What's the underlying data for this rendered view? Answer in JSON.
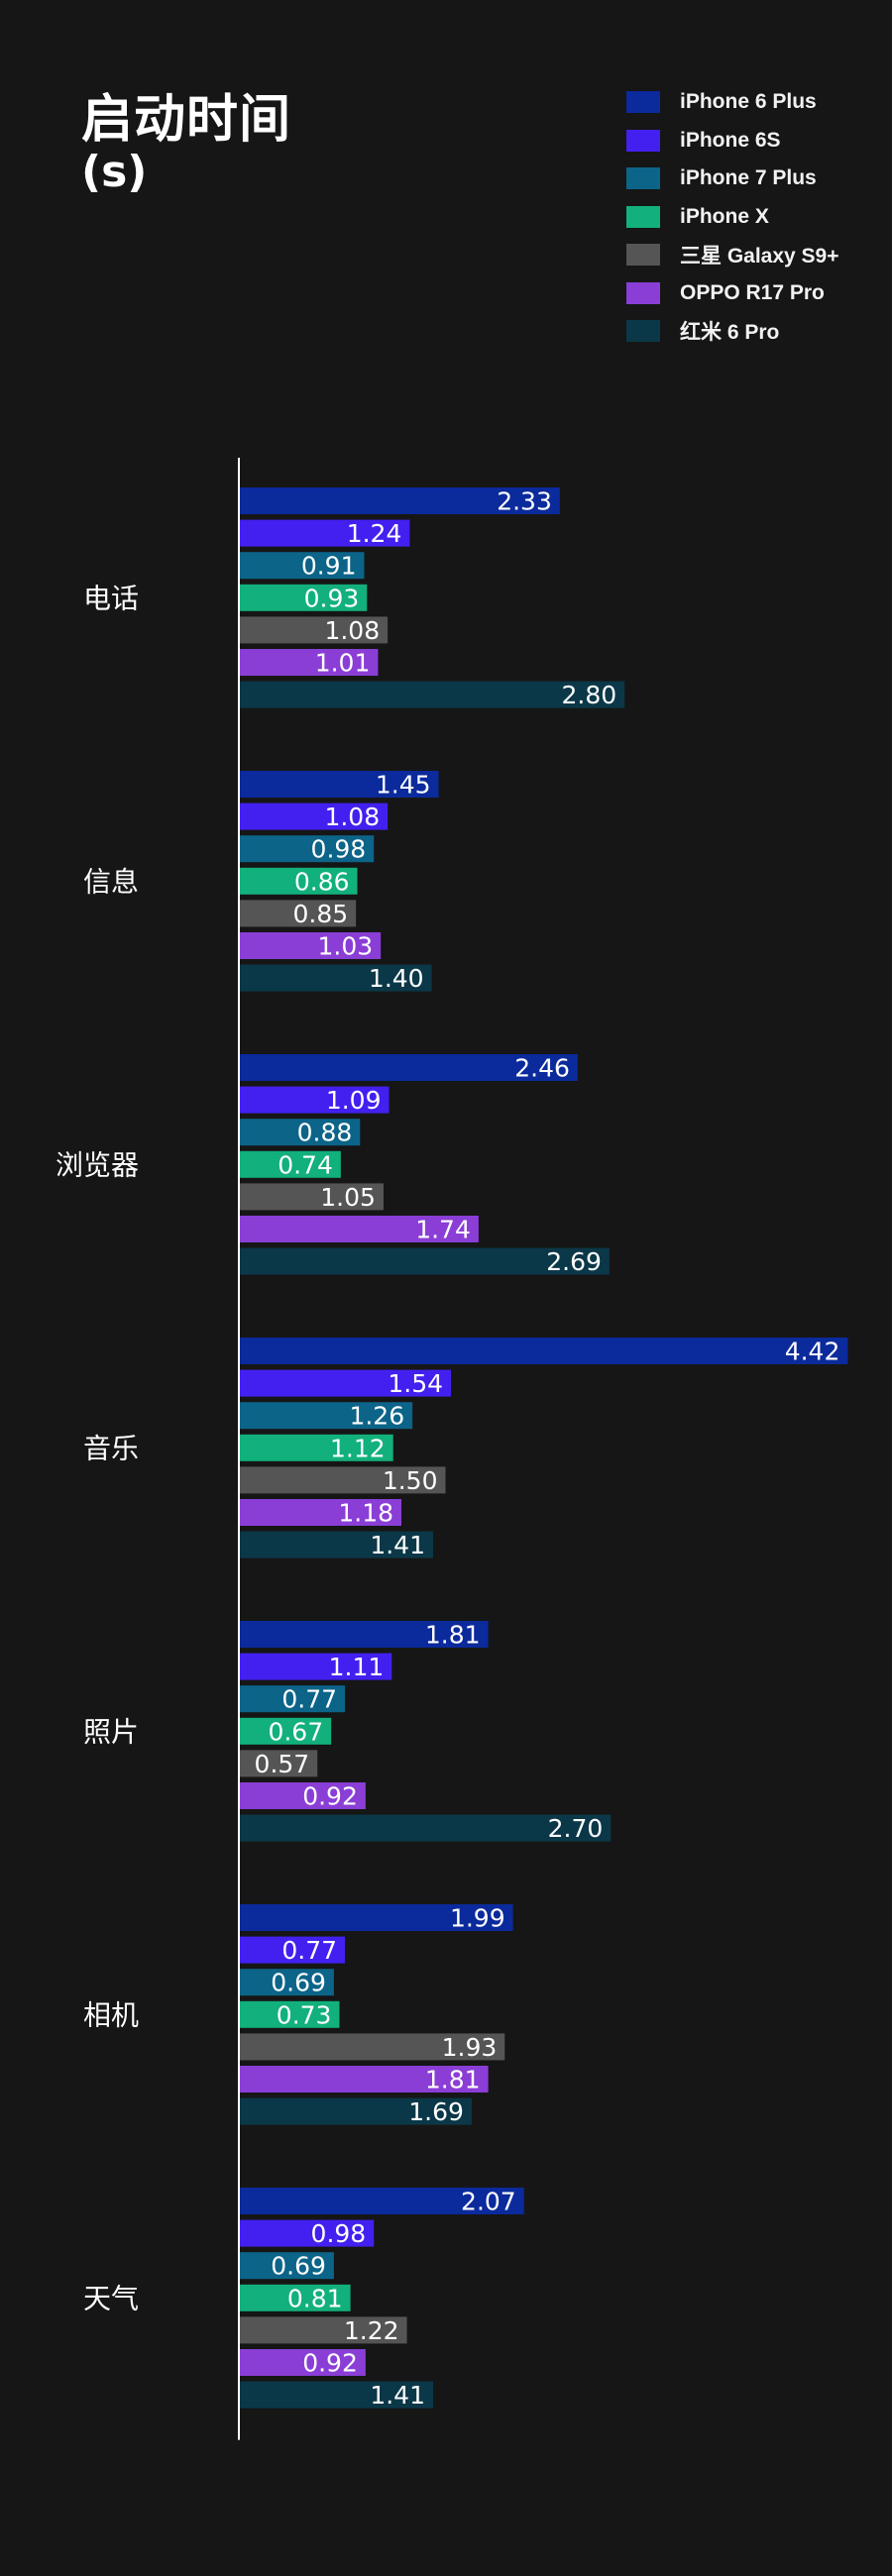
{
  "chart_data": {
    "type": "bar",
    "orientation": "horizontal",
    "title": "启动时间",
    "unit": "(s)",
    "categories": [
      "电话",
      "信息",
      "浏览器",
      "音乐",
      "照片",
      "相机",
      "天气"
    ],
    "series": [
      {
        "name": "iPhone 6 Plus",
        "color": "#0b2a9c",
        "values": [
          2.33,
          1.45,
          2.46,
          4.42,
          1.81,
          1.99,
          2.07
        ]
      },
      {
        "name": "iPhone 6S",
        "color": "#4320f0",
        "values": [
          1.24,
          1.08,
          1.09,
          1.54,
          1.11,
          0.77,
          0.98
        ]
      },
      {
        "name": "iPhone 7 Plus",
        "color": "#0c6489",
        "values": [
          0.91,
          0.98,
          0.88,
          1.26,
          0.77,
          0.69,
          0.69
        ]
      },
      {
        "name": "iPhone X",
        "color": "#12b07c",
        "values": [
          0.93,
          0.86,
          0.74,
          1.12,
          0.67,
          0.73,
          0.81
        ]
      },
      {
        "name": "三星 Galaxy S9+",
        "color": "#555555",
        "values": [
          1.08,
          0.85,
          1.05,
          1.5,
          0.57,
          1.93,
          1.22
        ]
      },
      {
        "name": "OPPO R17 Pro",
        "color": "#8a3ed6",
        "values": [
          1.01,
          1.03,
          1.74,
          1.18,
          0.92,
          1.81,
          0.92
        ]
      },
      {
        "name": "红米 6 Pro",
        "color": "#0b3848",
        "values": [
          2.8,
          1.4,
          2.69,
          1.41,
          2.7,
          1.69,
          1.41
        ]
      }
    ],
    "value_labels": [
      [
        "2.33",
        "1.45",
        "2.46",
        "4.42",
        "1.81",
        "1.99",
        "2.07"
      ],
      [
        "1.24",
        "1.08",
        "1.09",
        "1.54",
        "1.11",
        "0.77",
        "0.98"
      ],
      [
        "0.91",
        "0.98",
        "0.88",
        "1.26",
        "0.77",
        "0.69",
        "0.69"
      ],
      [
        "0.93",
        "0.86",
        "0.74",
        "1.12",
        "0.67",
        "0.73",
        "0.81"
      ],
      [
        "1.08",
        "0.85",
        "1.05",
        "1.50",
        "0.57",
        "1.93",
        "1.22"
      ],
      [
        "1.01",
        "1.03",
        "1.74",
        "1.18",
        "0.92",
        "1.81",
        "0.92"
      ],
      [
        "2.80",
        "1.40",
        "2.69",
        "1.41",
        "2.70",
        "1.69",
        "1.41"
      ]
    ],
    "xlim": [
      0,
      4.42
    ],
    "grid": false,
    "legend_position": "top-right"
  }
}
